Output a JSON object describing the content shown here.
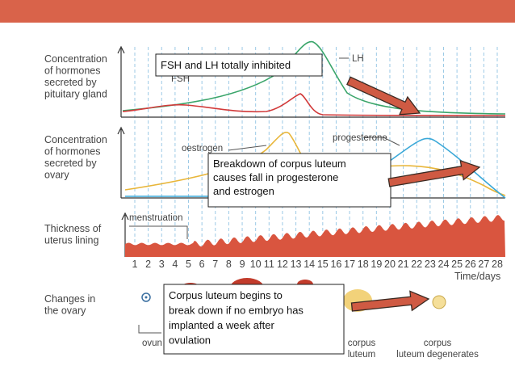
{
  "pituitary_panel": {
    "label_lines": [
      "Concentration",
      "of hormones",
      "secreted by",
      "pituitary gland"
    ],
    "curve_labels": [
      "FSH",
      "LH"
    ],
    "callout": "FSH and LH totally inhibited"
  },
  "ovary_panel": {
    "label_lines": [
      "Concentration",
      "of hormones",
      "secreted by",
      "ovary"
    ],
    "curve_labels": [
      "oestrogen",
      "progesterone"
    ],
    "callout_lines": [
      "Breakdown of corpus luteum",
      "causes fall in progesterone",
      "and estrogen"
    ]
  },
  "uterus_panel": {
    "label_lines": [
      "Thickness of",
      "uterus lining"
    ],
    "annotation": "menstruation",
    "days": [
      1,
      2,
      3,
      4,
      5,
      6,
      7,
      8,
      9,
      10,
      11,
      12,
      13,
      14,
      15,
      16,
      17,
      18,
      19,
      20,
      21,
      22,
      23,
      24,
      25,
      26,
      27,
      28
    ],
    "axis_label": "Time/days"
  },
  "ovary_changes": {
    "label_lines": [
      "Changes in",
      "the ovary"
    ],
    "stage_labels": [
      "ovun",
      "corpus luteum",
      "corpus luteum degenerates"
    ],
    "callout_lines": [
      "Corpus luteum begins to",
      "break down if no embryo has",
      "implanted a week after",
      "ovulation"
    ]
  }
}
